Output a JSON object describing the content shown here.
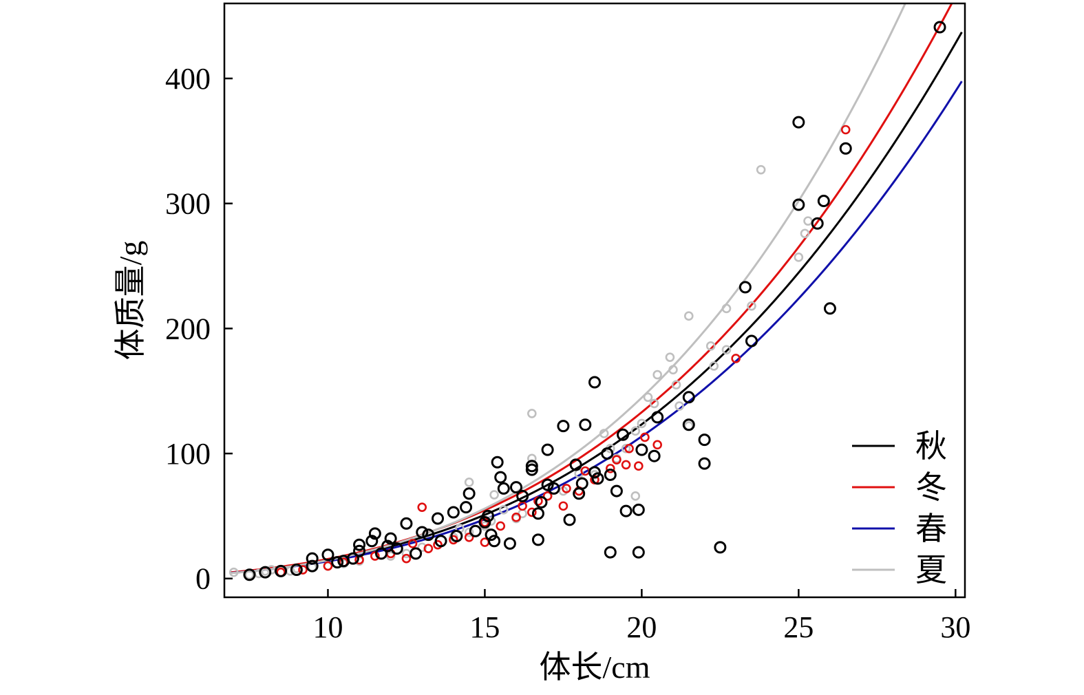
{
  "chart_data": {
    "type": "scatter",
    "xlabel": "体长/cm",
    "ylabel": "体质量/g",
    "xlim": [
      6.7,
      30.3
    ],
    "ylim": [
      -15,
      460
    ],
    "xticks": [
      10,
      15,
      20,
      25,
      30
    ],
    "yticks": [
      0,
      100,
      200,
      300,
      400
    ],
    "legend_position": "bottom-right",
    "grid": false,
    "series": [
      {
        "name": "秋",
        "color": "#000000",
        "curve": {
          "a": 0.0125,
          "b": 3.07
        },
        "points": [
          [
            7.5,
            3
          ],
          [
            8,
            5
          ],
          [
            8.5,
            6
          ],
          [
            9,
            7
          ],
          [
            9.5,
            10
          ],
          [
            9.5,
            16
          ],
          [
            10,
            19
          ],
          [
            10.3,
            13
          ],
          [
            10.5,
            14
          ],
          [
            10.8,
            16
          ],
          [
            11,
            27
          ],
          [
            11,
            22
          ],
          [
            11.4,
            30
          ],
          [
            11.5,
            36
          ],
          [
            11.7,
            20
          ],
          [
            11.9,
            26
          ],
          [
            12,
            32
          ],
          [
            12.2,
            24
          ],
          [
            12.5,
            44
          ],
          [
            12.8,
            20
          ],
          [
            13,
            37
          ],
          [
            13.2,
            35
          ],
          [
            13.5,
            48
          ],
          [
            13.6,
            30
          ],
          [
            14,
            53
          ],
          [
            14.1,
            34
          ],
          [
            14.4,
            57
          ],
          [
            14.5,
            68
          ],
          [
            14.7,
            38
          ],
          [
            15,
            45
          ],
          [
            15.1,
            50
          ],
          [
            15.2,
            35
          ],
          [
            15.3,
            30
          ],
          [
            15.4,
            93
          ],
          [
            15.5,
            81
          ],
          [
            15.6,
            72
          ],
          [
            15.8,
            28
          ],
          [
            16,
            73
          ],
          [
            16.2,
            66
          ],
          [
            16.5,
            90
          ],
          [
            16.5,
            87
          ],
          [
            16.7,
            52
          ],
          [
            16.7,
            31
          ],
          [
            16.8,
            61
          ],
          [
            17,
            75
          ],
          [
            17,
            103
          ],
          [
            17.2,
            72
          ],
          [
            17.5,
            122
          ],
          [
            17.7,
            47
          ],
          [
            17.9,
            91
          ],
          [
            18,
            68
          ],
          [
            18.1,
            76
          ],
          [
            18.2,
            123
          ],
          [
            18.5,
            85
          ],
          [
            18.5,
            157
          ],
          [
            18.6,
            80
          ],
          [
            18.9,
            100
          ],
          [
            19,
            21
          ],
          [
            19,
            83
          ],
          [
            19.2,
            70
          ],
          [
            19.4,
            115
          ],
          [
            19.5,
            54
          ],
          [
            19.9,
            21
          ],
          [
            19.9,
            55
          ],
          [
            20,
            103
          ],
          [
            20.4,
            98
          ],
          [
            20.5,
            129
          ],
          [
            21.5,
            145
          ],
          [
            21.5,
            123
          ],
          [
            22,
            111
          ],
          [
            22,
            92
          ],
          [
            22.5,
            25
          ],
          [
            23.3,
            233
          ],
          [
            23.5,
            190
          ],
          [
            25,
            365
          ],
          [
            25,
            299
          ],
          [
            25.6,
            284
          ],
          [
            25.8,
            302
          ],
          [
            26,
            216
          ],
          [
            26.5,
            344
          ],
          [
            29.5,
            441
          ]
        ]
      },
      {
        "name": "冬",
        "color": "#e01010",
        "curve": {
          "a": 0.0127,
          "b": 3.09
        },
        "points": [
          [
            8.5,
            5
          ],
          [
            9.2,
            7
          ],
          [
            10,
            10
          ],
          [
            10.5,
            13
          ],
          [
            11,
            15
          ],
          [
            11.5,
            18
          ],
          [
            12,
            20
          ],
          [
            12.5,
            16
          ],
          [
            12.7,
            28
          ],
          [
            13,
            57
          ],
          [
            13.2,
            24
          ],
          [
            13.5,
            27
          ],
          [
            14,
            31
          ],
          [
            14.5,
            33
          ],
          [
            15,
            29
          ],
          [
            15,
            45
          ],
          [
            15.5,
            42
          ],
          [
            16,
            49
          ],
          [
            16.2,
            58
          ],
          [
            16.5,
            53
          ],
          [
            16.7,
            62
          ],
          [
            17,
            66
          ],
          [
            17.5,
            58
          ],
          [
            17.6,
            72
          ],
          [
            18,
            70
          ],
          [
            18.2,
            86
          ],
          [
            18.5,
            79
          ],
          [
            19,
            88
          ],
          [
            19.2,
            95
          ],
          [
            19.5,
            91
          ],
          [
            19.6,
            104
          ],
          [
            19.9,
            90
          ],
          [
            20.1,
            113
          ],
          [
            20.5,
            107
          ],
          [
            23,
            176
          ],
          [
            26.5,
            359
          ]
        ]
      },
      {
        "name": "春",
        "color": "#1010aa",
        "curve": {
          "a": 0.0126,
          "b": 3.04
        },
        "points": []
      },
      {
        "name": "夏",
        "color": "#bfbfbf",
        "curve": {
          "a": 0.00736,
          "b": 3.3
        },
        "points": [
          [
            7,
            5
          ],
          [
            7.5,
            3
          ],
          [
            7.8,
            4
          ],
          [
            8,
            6
          ],
          [
            8.2,
            7
          ],
          [
            8.5,
            5
          ],
          [
            8.8,
            6
          ],
          [
            9,
            8
          ],
          [
            9.5,
            9
          ],
          [
            10,
            10
          ],
          [
            10.5,
            12
          ],
          [
            11,
            14
          ],
          [
            12,
            18
          ],
          [
            12.5,
            20
          ],
          [
            13,
            25
          ],
          [
            13.5,
            27
          ],
          [
            14,
            33
          ],
          [
            14.2,
            40
          ],
          [
            14.5,
            37
          ],
          [
            14.5,
            77
          ],
          [
            15,
            42
          ],
          [
            15.2,
            46
          ],
          [
            15.3,
            67
          ],
          [
            15.6,
            55
          ],
          [
            16,
            48
          ],
          [
            16.2,
            52
          ],
          [
            16.5,
            96
          ],
          [
            16.5,
            132
          ],
          [
            17,
            66
          ],
          [
            17.5,
            70
          ],
          [
            18,
            84
          ],
          [
            18.5,
            83
          ],
          [
            18.8,
            116
          ],
          [
            19,
            104
          ],
          [
            19.2,
            96
          ],
          [
            19.5,
            104
          ],
          [
            19.8,
            66
          ],
          [
            19.8,
            118
          ],
          [
            20,
            124
          ],
          [
            20.2,
            145
          ],
          [
            20.4,
            140
          ],
          [
            20.5,
            163
          ],
          [
            20.9,
            177
          ],
          [
            21,
            167
          ],
          [
            21.1,
            155
          ],
          [
            21.2,
            138
          ],
          [
            21.5,
            210
          ],
          [
            21.5,
            122
          ],
          [
            22.2,
            186
          ],
          [
            22.3,
            170
          ],
          [
            22.7,
            183
          ],
          [
            22.7,
            216
          ],
          [
            23.5,
            218
          ],
          [
            23.8,
            327
          ],
          [
            25,
            257
          ],
          [
            25.2,
            276
          ],
          [
            25.3,
            286
          ]
        ]
      }
    ]
  }
}
